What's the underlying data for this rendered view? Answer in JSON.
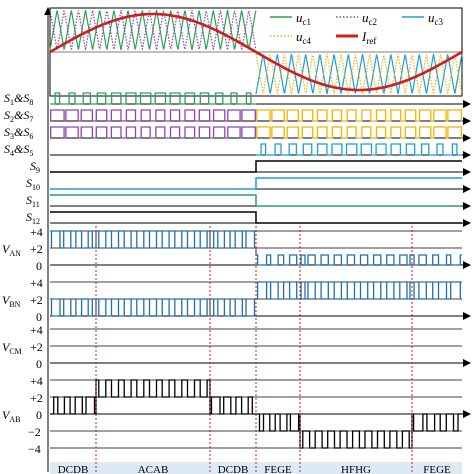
{
  "legend": {
    "carriers": [
      {
        "base": "u",
        "sub": "c1",
        "color": "#2ca05a",
        "dash": "solid"
      },
      {
        "base": "u",
        "sub": "c2",
        "color": "#8e44ad",
        "dash": "dotted"
      },
      {
        "base": "u",
        "sub": "c3",
        "color": "#1f9fd0",
        "dash": "solid"
      },
      {
        "base": "u",
        "sub": "c4",
        "color": "#f0b400",
        "dash": "dotted"
      }
    ],
    "reference": {
      "base": "I",
      "sub": "ref",
      "color": "#cc1f1f"
    }
  },
  "switch_labels": [
    {
      "id": "s1s8",
      "parts": [
        "S",
        "1",
        "&S",
        "8"
      ]
    },
    {
      "id": "s2s7",
      "parts": [
        "S",
        "2",
        "&S",
        "7"
      ]
    },
    {
      "id": "s3s6",
      "parts": [
        "S",
        "3",
        "&S",
        "6"
      ]
    },
    {
      "id": "s4s5",
      "parts": [
        "S",
        "4",
        "&S",
        "5"
      ]
    },
    {
      "id": "s9",
      "parts": [
        "S",
        "9"
      ]
    },
    {
      "id": "s10",
      "parts": [
        "S",
        "10"
      ]
    },
    {
      "id": "s11",
      "parts": [
        "S",
        "11"
      ]
    },
    {
      "id": "s12",
      "parts": [
        "S",
        "12"
      ]
    }
  ],
  "voltage_labels": {
    "van": {
      "base": "V",
      "sub": "AN"
    },
    "vbn": {
      "base": "V",
      "sub": "BN"
    },
    "vcm": {
      "base": "V",
      "sub": "CM"
    },
    "vab": {
      "base": "V",
      "sub": "AB"
    }
  },
  "ticks": {
    "plus4": "+4",
    "plus2": "+2",
    "zero": "0",
    "minus2": "−2",
    "minus4": "−4"
  },
  "mode_labels": [
    "DCDB",
    "ACAB",
    "DCDB",
    "FEGE",
    "HFHG",
    "FEGE"
  ],
  "colors": {
    "green": "#2ca05a",
    "purple": "#8e44ad",
    "yellow": "#f0b400",
    "blue": "#1f9fd0",
    "red": "#cc1f1f",
    "voltage": "#1f6fb0",
    "black": "#000000",
    "mode_bar": "#dde9f5"
  }
}
